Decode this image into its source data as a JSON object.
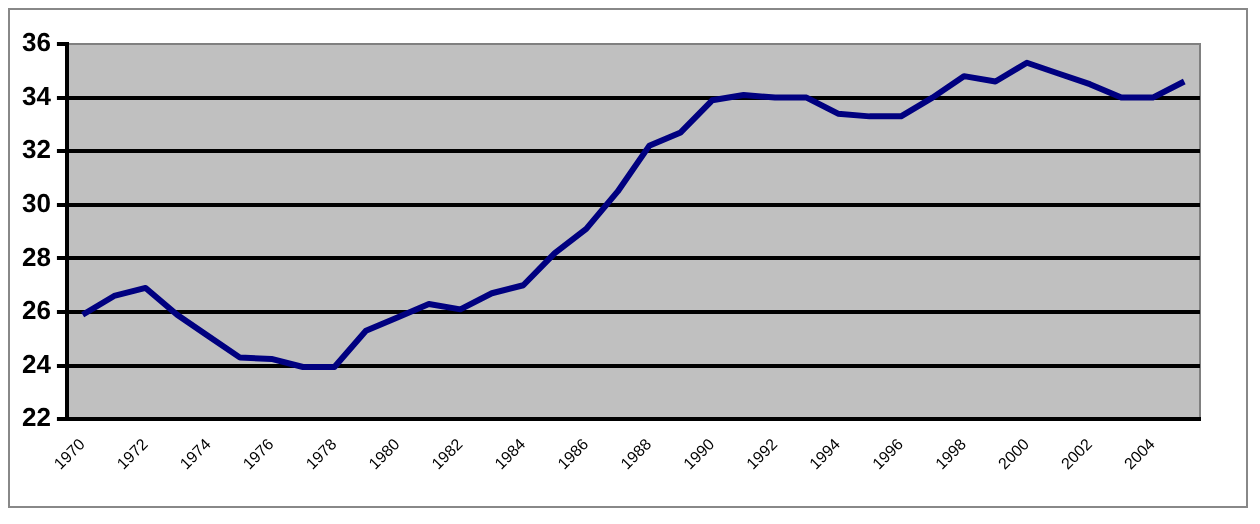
{
  "chart_data": {
    "type": "line",
    "categories": [
      "1970",
      null,
      "1972",
      null,
      "1974",
      null,
      "1976",
      null,
      "1978",
      null,
      "1980",
      null,
      "1982",
      null,
      "1984",
      null,
      "1986",
      null,
      "1988",
      null,
      "1990",
      null,
      "1992",
      null,
      "1994",
      null,
      "1996",
      null,
      "1998",
      null,
      "2000",
      null,
      "2002",
      null,
      "2004",
      null
    ],
    "series": [
      {
        "color": "#000080",
        "values": [
          25.9,
          26.6,
          26.9,
          25.9,
          25.1,
          24.3,
          24.25,
          23.95,
          23.95,
          25.3,
          25.8,
          26.3,
          26.1,
          26.7,
          27.0,
          28.2,
          29.1,
          30.5,
          32.2,
          32.7,
          33.9,
          34.1,
          34.0,
          34.0,
          33.4,
          33.3,
          33.3,
          34.0,
          34.8,
          34.6,
          35.3,
          34.9,
          34.5,
          34.0,
          34.0,
          34.6
        ]
      }
    ],
    "ylim": [
      22,
      36
    ],
    "yticks": [
      22,
      24,
      26,
      28,
      30,
      32,
      34,
      36
    ],
    "grid": "y",
    "legend": false,
    "marker": "none",
    "line_style": "solid"
  }
}
